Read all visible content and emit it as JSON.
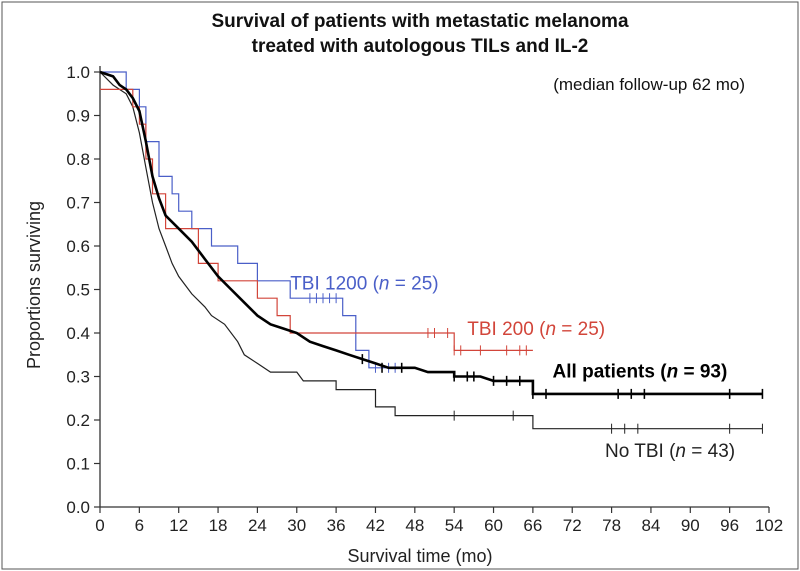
{
  "chart_data": {
    "type": "line",
    "title": [
      "Survival of patients with metastatic melanoma",
      "treated with autologous TILs and IL-2"
    ],
    "subtitle": "(median follow-up 62 mo)",
    "xlabel": "Survival time (mo)",
    "ylabel": "Proportions surviving",
    "xlim": [
      0,
      102
    ],
    "ylim": [
      0,
      1
    ],
    "x_ticks": [
      0,
      6,
      12,
      18,
      24,
      30,
      36,
      42,
      48,
      54,
      60,
      66,
      72,
      78,
      84,
      90,
      96,
      102
    ],
    "y_ticks": [
      "0.0",
      "0.1",
      "0.2",
      "0.3",
      "0.4",
      "0.5",
      "0.6",
      "0.7",
      "0.8",
      "0.9",
      "1.0"
    ],
    "series": [
      {
        "name": "TBI 1200",
        "n": "25",
        "color": "#4a5fc8",
        "width": 1.2,
        "label_parts": [
          "TBI 1200 (",
          "n",
          " = 25)"
        ],
        "label_at": [
          29,
          0.5
        ],
        "points": [
          [
            0,
            1.0
          ],
          [
            4,
            1.0
          ],
          [
            4,
            0.96
          ],
          [
            6,
            0.96
          ],
          [
            6,
            0.92
          ],
          [
            7,
            0.92
          ],
          [
            7,
            0.84
          ],
          [
            9,
            0.84
          ],
          [
            9,
            0.76
          ],
          [
            11,
            0.76
          ],
          [
            11,
            0.72
          ],
          [
            12,
            0.72
          ],
          [
            12,
            0.68
          ],
          [
            14,
            0.68
          ],
          [
            14,
            0.64
          ],
          [
            17,
            0.64
          ],
          [
            17,
            0.6
          ],
          [
            21,
            0.6
          ],
          [
            21,
            0.56
          ],
          [
            24,
            0.56
          ],
          [
            24,
            0.52
          ],
          [
            29,
            0.52
          ],
          [
            29,
            0.48
          ],
          [
            37,
            0.48
          ],
          [
            37,
            0.44
          ],
          [
            39,
            0.44
          ],
          [
            39,
            0.36
          ],
          [
            41,
            0.36
          ],
          [
            41,
            0.32
          ],
          [
            46,
            0.32
          ]
        ],
        "censors": [
          [
            32,
            0.48
          ],
          [
            33,
            0.48
          ],
          [
            34,
            0.48
          ],
          [
            35,
            0.48
          ],
          [
            36,
            0.48
          ],
          [
            42,
            0.32
          ],
          [
            44,
            0.32
          ],
          [
            45,
            0.32
          ]
        ]
      },
      {
        "name": "TBI 200",
        "n": "25",
        "color": "#d2453a",
        "width": 1.2,
        "label_parts": [
          "TBI 200 (",
          "n",
          " = 25)"
        ],
        "label_at": [
          56,
          0.395
        ],
        "points": [
          [
            0,
            0.96
          ],
          [
            5,
            0.96
          ],
          [
            5,
            0.92
          ],
          [
            6,
            0.92
          ],
          [
            6,
            0.88
          ],
          [
            7,
            0.88
          ],
          [
            7,
            0.8
          ],
          [
            8,
            0.8
          ],
          [
            8,
            0.72
          ],
          [
            10,
            0.72
          ],
          [
            10,
            0.64
          ],
          [
            15,
            0.64
          ],
          [
            15,
            0.56
          ],
          [
            18,
            0.56
          ],
          [
            18,
            0.52
          ],
          [
            24,
            0.52
          ],
          [
            24,
            0.48
          ],
          [
            27,
            0.48
          ],
          [
            27,
            0.44
          ],
          [
            29,
            0.44
          ],
          [
            29,
            0.4
          ],
          [
            54,
            0.4
          ],
          [
            54,
            0.36
          ],
          [
            66,
            0.36
          ]
        ],
        "censors": [
          [
            50,
            0.4
          ],
          [
            51,
            0.4
          ],
          [
            53,
            0.4
          ],
          [
            54,
            0.36
          ],
          [
            55,
            0.36
          ],
          [
            58,
            0.36
          ],
          [
            62,
            0.36
          ],
          [
            64,
            0.36
          ],
          [
            65,
            0.36
          ]
        ]
      },
      {
        "name": "All patients",
        "n": "93",
        "color": "#000000",
        "width": 2.6,
        "bold": true,
        "label_parts": [
          "All patients (",
          "n",
          "  = 93)"
        ],
        "label_at": [
          69,
          0.298
        ],
        "points": [
          [
            0,
            1.0
          ],
          [
            2,
            0.99
          ],
          [
            3,
            0.97
          ],
          [
            4,
            0.96
          ],
          [
            5,
            0.94
          ],
          [
            6,
            0.91
          ],
          [
            7,
            0.84
          ],
          [
            8,
            0.76
          ],
          [
            9,
            0.71
          ],
          [
            10,
            0.67
          ],
          [
            12,
            0.64
          ],
          [
            14,
            0.61
          ],
          [
            16,
            0.57
          ],
          [
            18,
            0.53
          ],
          [
            20,
            0.5
          ],
          [
            22,
            0.47
          ],
          [
            24,
            0.44
          ],
          [
            26,
            0.42
          ],
          [
            28,
            0.41
          ],
          [
            30,
            0.4
          ],
          [
            32,
            0.38
          ],
          [
            34,
            0.37
          ],
          [
            36,
            0.36
          ],
          [
            38,
            0.35
          ],
          [
            40,
            0.34
          ],
          [
            42,
            0.33
          ],
          [
            44,
            0.32
          ],
          [
            48,
            0.32
          ],
          [
            50,
            0.31
          ],
          [
            54,
            0.31
          ],
          [
            54,
            0.3
          ],
          [
            58,
            0.3
          ],
          [
            60,
            0.29
          ],
          [
            66,
            0.29
          ],
          [
            66,
            0.26
          ],
          [
            101,
            0.26
          ]
        ],
        "censors": [
          [
            40,
            0.34
          ],
          [
            43,
            0.32
          ],
          [
            46,
            0.32
          ],
          [
            54,
            0.3
          ],
          [
            56,
            0.3
          ],
          [
            57,
            0.3
          ],
          [
            60,
            0.29
          ],
          [
            62,
            0.29
          ],
          [
            64,
            0.29
          ],
          [
            66,
            0.26
          ],
          [
            68,
            0.26
          ],
          [
            79,
            0.26
          ],
          [
            81,
            0.26
          ],
          [
            83,
            0.26
          ],
          [
            96,
            0.26
          ],
          [
            101,
            0.26
          ]
        ]
      },
      {
        "name": "No TBI",
        "n": "43",
        "color": "#222222",
        "width": 1.2,
        "label_parts": [
          "No TBI (",
          "n",
          " = 43)"
        ],
        "label_at": [
          77,
          0.115
        ],
        "points": [
          [
            0,
            1.0
          ],
          [
            2,
            0.97
          ],
          [
            4,
            0.95
          ],
          [
            5,
            0.92
          ],
          [
            6,
            0.86
          ],
          [
            7,
            0.78
          ],
          [
            8,
            0.7
          ],
          [
            9,
            0.64
          ],
          [
            10,
            0.6
          ],
          [
            11,
            0.56
          ],
          [
            12,
            0.53
          ],
          [
            14,
            0.49
          ],
          [
            16,
            0.46
          ],
          [
            17,
            0.44
          ],
          [
            19,
            0.42
          ],
          [
            21,
            0.38
          ],
          [
            22,
            0.35
          ],
          [
            24,
            0.33
          ],
          [
            26,
            0.31
          ],
          [
            30,
            0.31
          ],
          [
            31,
            0.29
          ],
          [
            36,
            0.29
          ],
          [
            36,
            0.27
          ],
          [
            42,
            0.27
          ],
          [
            42,
            0.23
          ],
          [
            45,
            0.23
          ],
          [
            45,
            0.21
          ],
          [
            54,
            0.21
          ],
          [
            63,
            0.21
          ],
          [
            66,
            0.21
          ],
          [
            66,
            0.18
          ],
          [
            101,
            0.18
          ]
        ],
        "censors": [
          [
            54,
            0.21
          ],
          [
            63,
            0.21
          ],
          [
            78,
            0.18
          ],
          [
            80,
            0.18
          ],
          [
            82,
            0.18
          ],
          [
            96,
            0.18
          ],
          [
            101,
            0.18
          ]
        ]
      }
    ]
  }
}
